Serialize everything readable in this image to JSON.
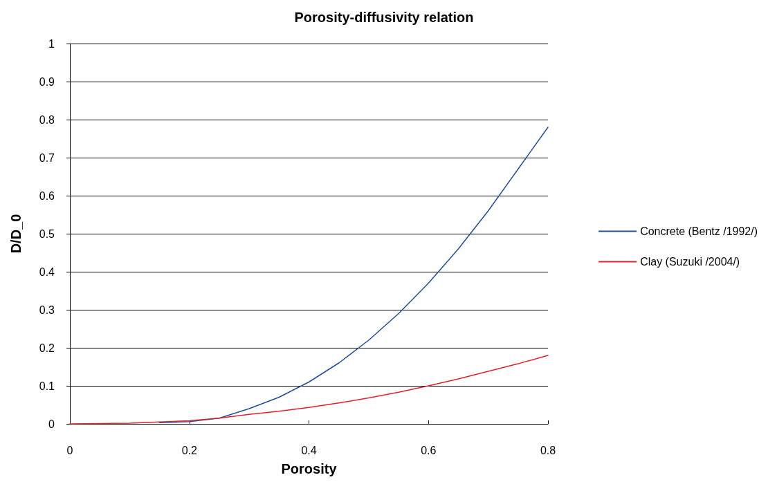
{
  "chart_data": {
    "type": "line",
    "title": "Porosity-diffusivity relation",
    "xlabel": "Porosity",
    "ylabel": "D/D_0",
    "xlim": [
      0,
      0.8
    ],
    "xticks": [
      0,
      0.2,
      0.4,
      0.6,
      0.8
    ],
    "ylim": [
      0,
      1
    ],
    "yticks": [
      0,
      0.1,
      0.2,
      0.3,
      0.4,
      0.5,
      0.6,
      0.7,
      0.8,
      0.9,
      1
    ],
    "grid": "y",
    "legend": "right",
    "marker": "none",
    "series": [
      {
        "name": "Concrete (Bentz /1992/)",
        "color": "#1f4e9c",
        "x": [
          0.15,
          0.2,
          0.25,
          0.3,
          0.35,
          0.4,
          0.45,
          0.5,
          0.55,
          0.6,
          0.65,
          0.7,
          0.75,
          0.8
        ],
        "values": [
          0.003,
          0.006,
          0.015,
          0.04,
          0.07,
          0.11,
          0.16,
          0.22,
          0.29,
          0.37,
          0.46,
          0.56,
          0.67,
          0.78
        ]
      },
      {
        "name": "Clay (Suzuki /2004/)",
        "color": "#e0202a",
        "x": [
          0,
          0.1,
          0.15,
          0.2,
          0.25,
          0.3,
          0.35,
          0.4,
          0.45,
          0.5,
          0.55,
          0.6,
          0.65,
          0.7,
          0.75,
          0.8
        ],
        "values": [
          0,
          0.002,
          0.005,
          0.008,
          0.015,
          0.025,
          0.033,
          0.043,
          0.055,
          0.068,
          0.083,
          0.1,
          0.118,
          0.138,
          0.158,
          0.18
        ]
      }
    ]
  }
}
